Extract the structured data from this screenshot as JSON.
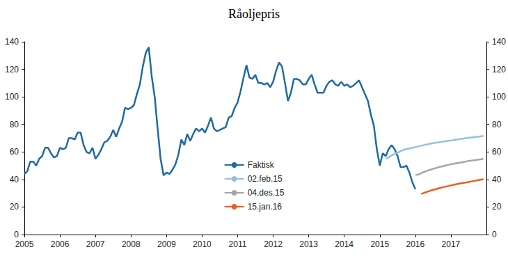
{
  "chart_data": {
    "type": "line",
    "title": "Råoljepris",
    "xlim": [
      2005,
      2018
    ],
    "xticks": [
      2005,
      2006,
      2007,
      2008,
      2009,
      2010,
      2011,
      2012,
      2013,
      2014,
      2015,
      2016,
      2017
    ],
    "ylim": [
      0,
      140
    ],
    "yticks": [
      0,
      20,
      40,
      60,
      80,
      100,
      120,
      140
    ],
    "y2lim": [
      0,
      140
    ],
    "y2ticks": [
      0,
      20,
      40,
      60,
      80,
      100,
      120,
      140
    ],
    "grid": false,
    "legend": "center",
    "series": [
      {
        "name": "Faktisk",
        "color": "#1f6aa5",
        "x": [
          2005,
          2005.083,
          2005.167,
          2005.25,
          2005.333,
          2005.417,
          2005.5,
          2005.583,
          2005.667,
          2005.75,
          2005.833,
          2005.917,
          2006,
          2006.083,
          2006.167,
          2006.25,
          2006.333,
          2006.417,
          2006.5,
          2006.583,
          2006.667,
          2006.75,
          2006.833,
          2006.917,
          2007,
          2007.083,
          2007.167,
          2007.25,
          2007.333,
          2007.417,
          2007.5,
          2007.583,
          2007.667,
          2007.75,
          2007.833,
          2007.917,
          2008,
          2008.083,
          2008.167,
          2008.25,
          2008.333,
          2008.417,
          2008.5,
          2008.583,
          2008.667,
          2008.75,
          2008.833,
          2008.917,
          2009,
          2009.083,
          2009.167,
          2009.25,
          2009.333,
          2009.417,
          2009.5,
          2009.583,
          2009.667,
          2009.75,
          2009.833,
          2009.917,
          2010,
          2010.083,
          2010.167,
          2010.25,
          2010.333,
          2010.417,
          2010.5,
          2010.583,
          2010.667,
          2010.75,
          2010.833,
          2010.917,
          2011,
          2011.083,
          2011.167,
          2011.25,
          2011.333,
          2011.417,
          2011.5,
          2011.583,
          2011.667,
          2011.75,
          2011.833,
          2011.917,
          2012,
          2012.083,
          2012.167,
          2012.25,
          2012.333,
          2012.417,
          2012.5,
          2012.583,
          2012.667,
          2012.75,
          2012.833,
          2012.917,
          2013,
          2013.083,
          2013.167,
          2013.25,
          2013.333,
          2013.417,
          2013.5,
          2013.583,
          2013.667,
          2013.75,
          2013.833,
          2013.917,
          2014,
          2014.083,
          2014.167,
          2014.25,
          2014.333,
          2014.417,
          2014.5,
          2014.583,
          2014.667,
          2014.75,
          2014.833,
          2014.917,
          2015,
          2015.083,
          2015.167,
          2015.25,
          2015.333,
          2015.417,
          2015.5,
          2015.583,
          2015.667,
          2015.75,
          2015.833,
          2015.917,
          2016
        ],
        "values": [
          44,
          46,
          53,
          53,
          50,
          55,
          57,
          63,
          63,
          59,
          56,
          57,
          63,
          62,
          63,
          70,
          70,
          69,
          74,
          74,
          65,
          60,
          59,
          63,
          55,
          58,
          62,
          67,
          68,
          71,
          76,
          71,
          77,
          82,
          92,
          91,
          92,
          94,
          102,
          109,
          122,
          132,
          136,
          115,
          100,
          77,
          55,
          43,
          45,
          44,
          47,
          51,
          58,
          69,
          65,
          73,
          68,
          73,
          77,
          75,
          77,
          74,
          79,
          85,
          77,
          75,
          76,
          77,
          78,
          85,
          86,
          92,
          96,
          104,
          114,
          123,
          114,
          113,
          116,
          110,
          110,
          109,
          110,
          107,
          111,
          119,
          125,
          122,
          110,
          97,
          103,
          113,
          113,
          112,
          109,
          109,
          113,
          116,
          109,
          103,
          103,
          103,
          108,
          111,
          112,
          109,
          108,
          111,
          108,
          109,
          107,
          108,
          110,
          112,
          107,
          102,
          97,
          87,
          79,
          62,
          50,
          59,
          57,
          62,
          65,
          62,
          57,
          49,
          49,
          50,
          45,
          38,
          33
        ]
      },
      {
        "name": "02.feb.15",
        "color": "#92c1e0",
        "x": [
          2015.167,
          2015.25,
          2015.333,
          2015.417,
          2015.5,
          2015.583,
          2015.667,
          2015.75,
          2015.833,
          2015.917,
          2016,
          2016.083,
          2016.167,
          2016.25,
          2016.333,
          2016.417,
          2016.5,
          2016.583,
          2016.667,
          2016.75,
          2016.833,
          2016.917,
          2017,
          2017.083,
          2017.167,
          2017.25,
          2017.333,
          2017.417,
          2017.5,
          2017.583,
          2017.667,
          2017.75,
          2017.833,
          2017.917
        ],
        "values": [
          55,
          56,
          57.5,
          58.5,
          59.5,
          60.5,
          61.5,
          62,
          62.5,
          63,
          63.5,
          64,
          64.5,
          65,
          65.5,
          66,
          66.3,
          66.7,
          67,
          67.3,
          67.7,
          68,
          68.3,
          68.6,
          69,
          69.3,
          69.6,
          70,
          70.2,
          70.5,
          70.8,
          71,
          71.3,
          71.6
        ]
      },
      {
        "name": "04.des.15",
        "color": "#a6a6a6",
        "x": [
          2016,
          2016.083,
          2016.167,
          2016.25,
          2016.333,
          2016.417,
          2016.5,
          2016.583,
          2016.667,
          2016.75,
          2016.833,
          2016.917,
          2017,
          2017.083,
          2017.167,
          2017.25,
          2017.333,
          2017.417,
          2017.5,
          2017.583,
          2017.667,
          2017.75,
          2017.833,
          2017.917
        ],
        "values": [
          43.5,
          43.5,
          44.5,
          45.5,
          46.3,
          47,
          47.7,
          48.3,
          49,
          49.5,
          50,
          50.5,
          51,
          51.4,
          51.8,
          52.2,
          52.6,
          53,
          53.4,
          53.7,
          54,
          54.3,
          54.6,
          55
        ]
      },
      {
        "name": "15.jan.16",
        "color": "#f05a1e",
        "x": [
          2016.167,
          2016.25,
          2016.333,
          2016.417,
          2016.5,
          2016.583,
          2016.667,
          2016.75,
          2016.833,
          2016.917,
          2017,
          2017.083,
          2017.167,
          2017.25,
          2017.333,
          2017.417,
          2017.5,
          2017.583,
          2017.667,
          2017.75,
          2017.833,
          2017.917
        ],
        "values": [
          29.5,
          30.3,
          31,
          31.8,
          32.5,
          33,
          33.6,
          34.2,
          34.7,
          35.2,
          35.7,
          36.1,
          36.6,
          37,
          37.4,
          37.8,
          38.2,
          38.6,
          39,
          39.4,
          39.8,
          40.2
        ]
      }
    ]
  }
}
